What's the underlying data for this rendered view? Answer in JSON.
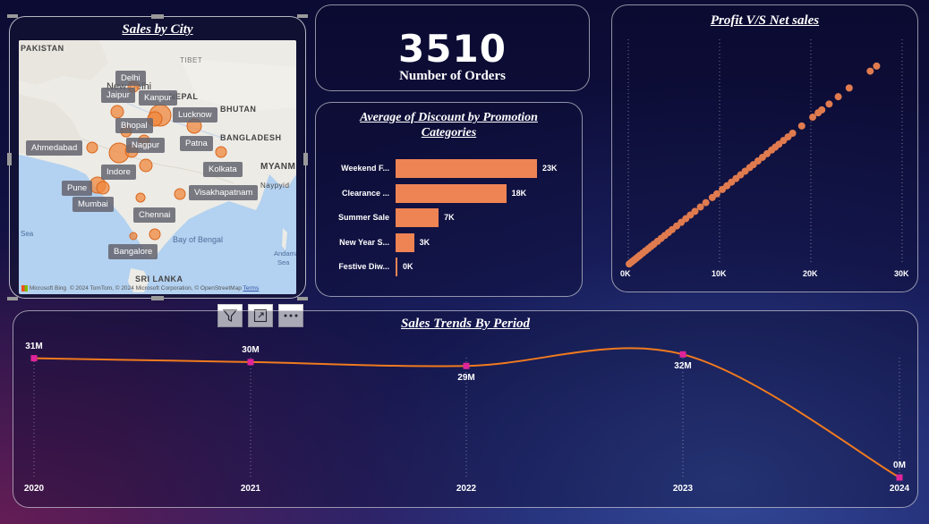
{
  "map": {
    "title": "Sales by City",
    "region_labels": [
      "PAKISTAN",
      "TIBET",
      "BHUTAN",
      "BANGLADESH",
      "MYANM",
      "Naypyid",
      "Bay of Bengal",
      "Sea",
      "Andamа",
      "Sea",
      "SRI LANKA",
      "New Delhi",
      "NEPAL"
    ],
    "cities": [
      "Delhi",
      "Jaipur",
      "Kanpur",
      "Lucknow",
      "Bhopal",
      "Patna",
      "Nagpur",
      "Ahmedabad",
      "Kolkata",
      "Indore",
      "Pune",
      "Visakhapatnam",
      "Mumbai",
      "Chennai",
      "Bangalore"
    ],
    "attribution": "© 2024 TomTom, © 2024 Microsoft Corporation, © OpenStreetMap",
    "attribution_terms": "Terms",
    "logo_text": "Microsoft Bing",
    "bubble_color": "#f0883e"
  },
  "kpi": {
    "value": "3510",
    "label": "Number of Orders"
  },
  "discount_chart": {
    "title_line1": "Average of Discount by Promotion",
    "title_line2": "Categories",
    "categories": [
      "Weekend F...",
      "Clearance ...",
      "Summer Sale",
      "New Year S...",
      "Festive Diw..."
    ],
    "values": [
      23000,
      18000,
      7000,
      3000,
      0
    ],
    "value_labels": [
      "23K",
      "18K",
      "7K",
      "3K",
      "0K"
    ],
    "color": "#ee8354"
  },
  "scatter_chart": {
    "type": "scatter",
    "title": "Profit V/S Net sales",
    "x_ticks": [
      "0K",
      "10K",
      "20K",
      "30K"
    ],
    "xlim": [
      0,
      30000
    ],
    "ylim": [
      0,
      30000
    ],
    "color": "#e07b4f",
    "points": [
      [
        100,
        100
      ],
      [
        300,
        300
      ],
      [
        500,
        500
      ],
      [
        700,
        700
      ],
      [
        900,
        900
      ],
      [
        1100,
        1100
      ],
      [
        1300,
        1300
      ],
      [
        1600,
        1600
      ],
      [
        1900,
        1900
      ],
      [
        2200,
        2200
      ],
      [
        2500,
        2500
      ],
      [
        2800,
        2800
      ],
      [
        3200,
        3200
      ],
      [
        3600,
        3600
      ],
      [
        4000,
        4000
      ],
      [
        4400,
        4400
      ],
      [
        4800,
        4800
      ],
      [
        5300,
        5300
      ],
      [
        5800,
        5800
      ],
      [
        6300,
        6300
      ],
      [
        6800,
        6800
      ],
      [
        7300,
        7300
      ],
      [
        7900,
        7900
      ],
      [
        8500,
        8500
      ],
      [
        9200,
        9200
      ],
      [
        9700,
        9700
      ],
      [
        10300,
        10300
      ],
      [
        10800,
        10800
      ],
      [
        11300,
        11300
      ],
      [
        11800,
        11800
      ],
      [
        12300,
        12300
      ],
      [
        12800,
        12800
      ],
      [
        13300,
        13300
      ],
      [
        13700,
        13700
      ],
      [
        14200,
        14200
      ],
      [
        14700,
        14700
      ],
      [
        15200,
        15200
      ],
      [
        15700,
        15700
      ],
      [
        16100,
        16100
      ],
      [
        16500,
        16500
      ],
      [
        17000,
        17000
      ],
      [
        17500,
        17500
      ],
      [
        18000,
        18000
      ],
      [
        19000,
        19000
      ],
      [
        20200,
        20200
      ],
      [
        20800,
        20800
      ],
      [
        21200,
        21200
      ],
      [
        22000,
        22000
      ],
      [
        23000,
        23000
      ],
      [
        24200,
        24200
      ],
      [
        26500,
        26500
      ],
      [
        27200,
        27200
      ]
    ]
  },
  "line_chart": {
    "type": "line",
    "title": "Sales Trends By Period",
    "x": [
      "2020",
      "2021",
      "2022",
      "2023",
      "2024"
    ],
    "values": [
      31,
      30,
      29,
      32,
      0
    ],
    "value_labels": [
      "31M",
      "30M",
      "29M",
      "32M",
      "0M"
    ],
    "ylim": [
      0,
      33
    ],
    "line_color": "#f07a1e",
    "marker_color": "#e0249a"
  },
  "chart_data": [
    {
      "type": "bar",
      "title": "Average of Discount by Promotion Categories",
      "categories": [
        "Weekend F...",
        "Clearance ...",
        "Summer Sale",
        "New Year S...",
        "Festive Diw..."
      ],
      "values": [
        23000,
        18000,
        7000,
        3000,
        0
      ]
    },
    {
      "type": "scatter",
      "title": "Profit V/S Net sales",
      "xlim": [
        0,
        30000
      ]
    },
    {
      "type": "line",
      "title": "Sales Trends By Period",
      "x": [
        "2020",
        "2021",
        "2022",
        "2023",
        "2024"
      ],
      "values": [
        31000000,
        30000000,
        29000000,
        32000000,
        0
      ]
    }
  ]
}
